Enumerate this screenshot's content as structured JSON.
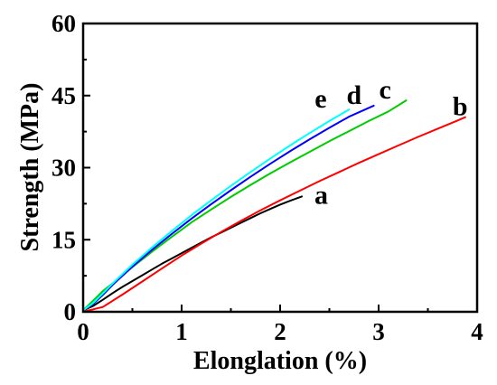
{
  "chart_data": {
    "type": "line",
    "title": "",
    "xlabel": "Elonglation (%)",
    "ylabel": "Strength (MPa)",
    "xlim": [
      0,
      4
    ],
    "ylim": [
      0,
      60
    ],
    "x_ticks": [
      0,
      1,
      2,
      3,
      4
    ],
    "x_tick_labels": [
      "0",
      "1",
      "2",
      "3",
      "4"
    ],
    "y_ticks": [
      0,
      15,
      30,
      45,
      60
    ],
    "y_tick_labels": [
      "0",
      "15",
      "30",
      "45",
      "60"
    ],
    "grid": false,
    "legend": "labels placed at curve ends",
    "series": [
      {
        "name": "a",
        "color": "#000000",
        "x": [
          0,
          0.1,
          0.2,
          0.3,
          0.4,
          0.5,
          0.6,
          0.7,
          0.8,
          0.9,
          1.0,
          1.1,
          1.2,
          1.3,
          1.4,
          1.5,
          1.6,
          1.7,
          1.8,
          1.9,
          2.0,
          2.1,
          2.22
        ],
        "y": [
          0.3,
          1.2,
          2.5,
          3.9,
          5.2,
          6.4,
          7.6,
          8.8,
          10.0,
          11.1,
          12.2,
          13.3,
          14.4,
          15.5,
          16.5,
          17.5,
          18.5,
          19.5,
          20.5,
          21.4,
          22.3,
          23.1,
          24.0
        ]
      },
      {
        "name": "b",
        "color": "#ff0000",
        "x": [
          0,
          0.2,
          0.4,
          0.6,
          0.8,
          1.0,
          1.2,
          1.4,
          1.6,
          1.8,
          2.0,
          2.2,
          2.4,
          2.6,
          2.8,
          3.0,
          3.2,
          3.4,
          3.6,
          3.8,
          3.88
        ],
        "y": [
          0,
          1.0,
          3.6,
          6.3,
          9.0,
          11.7,
          14.2,
          16.6,
          18.9,
          21.1,
          23.2,
          25.2,
          27.2,
          29.1,
          31.0,
          32.8,
          34.6,
          36.4,
          38.1,
          39.8,
          40.5
        ]
      },
      {
        "name": "c",
        "color": "#00cc00",
        "x": [
          0,
          0.1,
          0.2,
          0.3,
          0.5,
          0.7,
          0.9,
          1.1,
          1.3,
          1.5,
          1.7,
          1.9,
          2.1,
          2.3,
          2.5,
          2.7,
          2.9,
          3.1,
          3.28
        ],
        "y": [
          0.3,
          2.3,
          4.3,
          5.9,
          9.3,
          12.5,
          15.6,
          18.6,
          21.3,
          23.9,
          26.4,
          28.8,
          31.1,
          33.3,
          35.5,
          37.6,
          39.7,
          41.7,
          44.0
        ]
      },
      {
        "name": "d",
        "color": "#0000ff",
        "x": [
          0,
          0.1,
          0.2,
          0.3,
          0.5,
          0.7,
          0.9,
          1.1,
          1.3,
          1.5,
          1.7,
          1.9,
          2.1,
          2.3,
          2.5,
          2.7,
          2.95
        ],
        "y": [
          0.3,
          1.6,
          3.5,
          5.6,
          9.4,
          12.9,
          16.2,
          19.4,
          22.4,
          25.3,
          28.1,
          30.8,
          33.4,
          35.9,
          38.3,
          40.6,
          42.9
        ]
      },
      {
        "name": "e",
        "color": "#00ffff",
        "x": [
          0,
          0.1,
          0.2,
          0.3,
          0.5,
          0.7,
          0.9,
          1.1,
          1.3,
          1.5,
          1.7,
          1.9,
          2.1,
          2.3,
          2.5,
          2.7
        ],
        "y": [
          0.3,
          1.8,
          3.8,
          5.9,
          9.8,
          13.4,
          16.8,
          20.1,
          23.2,
          26.2,
          29.1,
          31.9,
          34.6,
          37.2,
          39.7,
          42.1
        ]
      }
    ]
  }
}
